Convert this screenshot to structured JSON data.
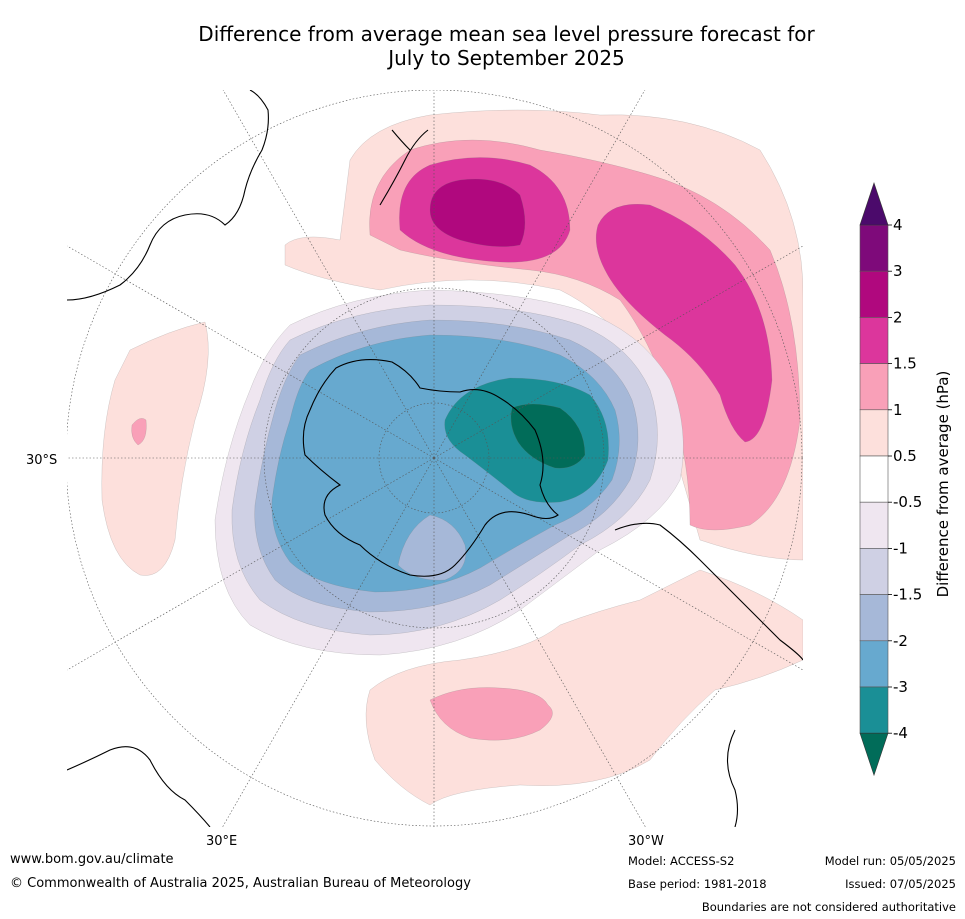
{
  "title_line1": "Difference from average mean sea level pressure forecast for",
  "title_line2": "July to September 2025",
  "lat_label": "30°S",
  "lon_label_left": "30°E",
  "lon_label_right": "30°W",
  "colorbar": {
    "title": "Difference from average (hPa)",
    "ticks": [
      "4",
      "3",
      "2",
      "1.5",
      "1",
      "0.5",
      "-0.5",
      "-1",
      "-1.5",
      "-2",
      "-3",
      "-4"
    ],
    "colors": {
      "gt4": "#4b0a6b",
      "3_4": "#7e0a7a",
      "2_3": "#b0087e",
      "1.5_2": "#dc369c",
      "1_1.5": "#f9a0b8",
      "0.5_1": "#fde0dc",
      "neutral": "#ffffff",
      "m1_m0.5": "#efe6f0",
      "m1.5_m1": "#cfd0e4",
      "m2_m1.5": "#a6b8d8",
      "m3_m2": "#67a9cf",
      "m4_m3": "#1a8f96",
      "lt_m4": "#016c59"
    }
  },
  "footer": {
    "website": "www.bom.gov.au/climate",
    "copyright": "© Commonwealth of Australia 2025, Australian Bureau of Meteorology",
    "model": "Model: ACCESS-S2",
    "base_period": "Base period: 1981-2018",
    "model_run": "Model run: 05/05/2025",
    "issued": "Issued: 07/05/2025",
    "disclaimer": "Boundaries are not considered authoritative"
  }
}
